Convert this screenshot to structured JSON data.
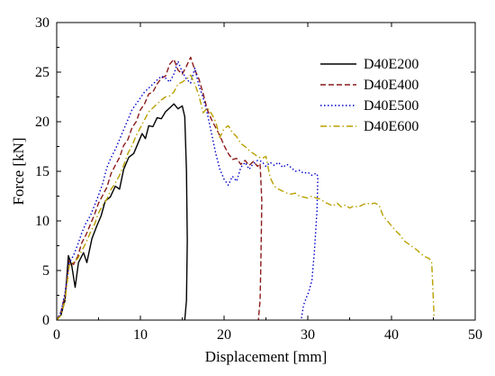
{
  "chart_data": {
    "type": "line",
    "xlabel": "Displacement [mm]",
    "ylabel": "Force [kN]",
    "xlim": [
      0,
      50
    ],
    "ylim": [
      0,
      30
    ],
    "xticks": [
      0,
      10,
      20,
      30,
      40,
      50
    ],
    "yticks": [
      0,
      5,
      10,
      15,
      20,
      25,
      30
    ],
    "grid": false,
    "legend_position": "top-right",
    "series": [
      {
        "name": "D40E200",
        "color": "#000000",
        "dash": "solid",
        "points": [
          [
            0,
            0
          ],
          [
            0.5,
            0.5
          ],
          [
            1,
            2
          ],
          [
            1.4,
            6.5
          ],
          [
            1.8,
            5.5
          ],
          [
            2.2,
            3.3
          ],
          [
            2.6,
            5.8
          ],
          [
            3.2,
            6.8
          ],
          [
            3.6,
            5.8
          ],
          [
            4.2,
            8.2
          ],
          [
            4.8,
            9.5
          ],
          [
            5.3,
            10.5
          ],
          [
            5.8,
            12
          ],
          [
            6.4,
            12.4
          ],
          [
            7,
            13.5
          ],
          [
            7.5,
            13.2
          ],
          [
            8,
            15.2
          ],
          [
            8.6,
            16.4
          ],
          [
            9.2,
            16.8
          ],
          [
            9.7,
            17.8
          ],
          [
            10.2,
            18.8
          ],
          [
            10.6,
            18.3
          ],
          [
            11,
            19.6
          ],
          [
            11.5,
            19.5
          ],
          [
            12,
            20.4
          ],
          [
            12.5,
            20.3
          ],
          [
            13,
            21
          ],
          [
            13.5,
            21.4
          ],
          [
            14,
            21.8
          ],
          [
            14.5,
            21.3
          ],
          [
            15,
            21.6
          ],
          [
            15.3,
            20.5
          ],
          [
            15.5,
            15
          ],
          [
            15.6,
            8
          ],
          [
            15.5,
            2
          ],
          [
            15.3,
            0
          ]
        ]
      },
      {
        "name": "D40E400",
        "color": "#8b1a1a",
        "dash": "dashed",
        "points": [
          [
            0,
            0
          ],
          [
            0.5,
            0.8
          ],
          [
            1,
            2.5
          ],
          [
            1.5,
            6
          ],
          [
            2,
            5.6
          ],
          [
            2.5,
            6.4
          ],
          [
            3,
            7.8
          ],
          [
            3.5,
            8.6
          ],
          [
            4,
            9.6
          ],
          [
            4.5,
            10.6
          ],
          [
            5,
            11.8
          ],
          [
            5.5,
            12.6
          ],
          [
            6,
            13.4
          ],
          [
            6.5,
            14.8
          ],
          [
            7,
            15.6
          ],
          [
            7.5,
            16.4
          ],
          [
            8,
            17.6
          ],
          [
            8.5,
            18.2
          ],
          [
            9,
            19.4
          ],
          [
            9.5,
            20
          ],
          [
            10,
            21.2
          ],
          [
            10.5,
            21.8
          ],
          [
            11,
            22.8
          ],
          [
            11.5,
            23
          ],
          [
            12,
            23.8
          ],
          [
            12.5,
            24.4
          ],
          [
            13,
            24.6
          ],
          [
            13.5,
            25.8
          ],
          [
            14,
            26.3
          ],
          [
            14.5,
            25.2
          ],
          [
            15,
            24.8
          ],
          [
            15.5,
            25.6
          ],
          [
            16,
            26.5
          ],
          [
            16.5,
            25.2
          ],
          [
            17,
            24.3
          ],
          [
            17.5,
            22.8
          ],
          [
            18,
            21.2
          ],
          [
            18.5,
            20.2
          ],
          [
            19,
            19.4
          ],
          [
            19.5,
            18.6
          ],
          [
            20,
            17.6
          ],
          [
            20.5,
            16.8
          ],
          [
            21,
            16.2
          ],
          [
            21.5,
            16.3
          ],
          [
            22,
            15.7
          ],
          [
            22.5,
            16.1
          ],
          [
            23,
            15.6
          ],
          [
            23.5,
            16
          ],
          [
            24,
            15.5
          ],
          [
            24.3,
            15.8
          ],
          [
            24.5,
            12
          ],
          [
            24.4,
            6
          ],
          [
            24.3,
            2
          ],
          [
            24.1,
            0
          ]
        ]
      },
      {
        "name": "D40E500",
        "color": "#0000cc",
        "dash": "dotted",
        "points": [
          [
            0,
            0
          ],
          [
            0.5,
            0.8
          ],
          [
            1,
            2.8
          ],
          [
            1.5,
            5.8
          ],
          [
            2,
            6.5
          ],
          [
            2.5,
            7.6
          ],
          [
            3,
            8.8
          ],
          [
            3.5,
            9.8
          ],
          [
            4,
            10.5
          ],
          [
            4.5,
            11.5
          ],
          [
            5,
            12.6
          ],
          [
            5.5,
            13.8
          ],
          [
            6,
            15.4
          ],
          [
            6.5,
            16.4
          ],
          [
            7,
            17.2
          ],
          [
            7.5,
            18.2
          ],
          [
            8,
            19.2
          ],
          [
            8.5,
            20.2
          ],
          [
            9,
            21.2
          ],
          [
            9.5,
            21.8
          ],
          [
            10,
            22.4
          ],
          [
            10.5,
            23
          ],
          [
            11,
            23.4
          ],
          [
            11.5,
            23.8
          ],
          [
            12,
            24.2
          ],
          [
            12.5,
            24.6
          ],
          [
            13,
            24.4
          ],
          [
            13.5,
            24
          ],
          [
            14,
            24.8
          ],
          [
            14.5,
            26.1
          ],
          [
            15,
            25
          ],
          [
            15.5,
            24.3
          ],
          [
            16,
            23.9
          ],
          [
            16.5,
            25.4
          ],
          [
            17,
            23.6
          ],
          [
            17.5,
            22.4
          ],
          [
            18,
            20.8
          ],
          [
            18.5,
            18.8
          ],
          [
            19,
            16.8
          ],
          [
            19.5,
            15.2
          ],
          [
            20,
            14.2
          ],
          [
            20.5,
            13.6
          ],
          [
            21,
            14.5
          ],
          [
            21.5,
            14
          ],
          [
            22,
            15.4
          ],
          [
            22.5,
            15.9
          ],
          [
            23,
            15.2
          ],
          [
            23.5,
            15.8
          ],
          [
            24,
            16.1
          ],
          [
            24.5,
            16
          ],
          [
            25,
            15.5
          ],
          [
            25.5,
            15.9
          ],
          [
            26,
            15.6
          ],
          [
            26.5,
            15.9
          ],
          [
            27,
            15.4
          ],
          [
            27.5,
            15.7
          ],
          [
            28,
            15.4
          ],
          [
            28.5,
            15
          ],
          [
            29,
            15.1
          ],
          [
            29.5,
            14.8
          ],
          [
            30,
            14.9
          ],
          [
            30.5,
            14.6
          ],
          [
            31,
            14.8
          ],
          [
            31.2,
            14.5
          ],
          [
            31.1,
            11
          ],
          [
            30.8,
            7
          ],
          [
            30.5,
            4
          ],
          [
            30.1,
            2.8
          ],
          [
            29.8,
            2.2
          ],
          [
            29.5,
            1.5
          ],
          [
            29.3,
            0.5
          ],
          [
            29.2,
            0
          ]
        ]
      },
      {
        "name": "D40E600",
        "color": "#b8a000",
        "dash": "dashdot",
        "points": [
          [
            0,
            0
          ],
          [
            0.5,
            0.5
          ],
          [
            1,
            2
          ],
          [
            1.5,
            5.5
          ],
          [
            2,
            5.8
          ],
          [
            2.5,
            6.2
          ],
          [
            3,
            7
          ],
          [
            3.5,
            7.8
          ],
          [
            4,
            8.8
          ],
          [
            4.5,
            9.6
          ],
          [
            5,
            10.8
          ],
          [
            5.5,
            11.6
          ],
          [
            6,
            12.2
          ],
          [
            6.5,
            13.2
          ],
          [
            7,
            13.8
          ],
          [
            7.5,
            14.6
          ],
          [
            8,
            15.6
          ],
          [
            8.5,
            16.8
          ],
          [
            9,
            17.6
          ],
          [
            9.5,
            18.6
          ],
          [
            10,
            19.4
          ],
          [
            10.5,
            20.2
          ],
          [
            11,
            21
          ],
          [
            11.5,
            21.4
          ],
          [
            12,
            21.8
          ],
          [
            12.5,
            22.2
          ],
          [
            13,
            22.5
          ],
          [
            13.5,
            22.6
          ],
          [
            14,
            23
          ],
          [
            14.5,
            23.8
          ],
          [
            15,
            24
          ],
          [
            15.5,
            24.3
          ],
          [
            16,
            24.7
          ],
          [
            16.5,
            23.8
          ],
          [
            17,
            22.6
          ],
          [
            17.5,
            20.9
          ],
          [
            18,
            21.4
          ],
          [
            18.5,
            20.8
          ],
          [
            19,
            20
          ],
          [
            19.5,
            18.4
          ],
          [
            20,
            19.3
          ],
          [
            20.5,
            19.6
          ],
          [
            21,
            18.9
          ],
          [
            21.5,
            18.5
          ],
          [
            22,
            17.8
          ],
          [
            22.5,
            17.5
          ],
          [
            23,
            17.1
          ],
          [
            23.5,
            16.8
          ],
          [
            24,
            16.5
          ],
          [
            24.5,
            16.3
          ],
          [
            25,
            16.5
          ],
          [
            25.5,
            14.4
          ],
          [
            26,
            13.5
          ],
          [
            26.5,
            13.2
          ],
          [
            27,
            13
          ],
          [
            27.5,
            12.8
          ],
          [
            28,
            12.7
          ],
          [
            28.5,
            12.8
          ],
          [
            29,
            12.5
          ],
          [
            29.5,
            12.4
          ],
          [
            30,
            12.3
          ],
          [
            30.5,
            12.5
          ],
          [
            31,
            12.3
          ],
          [
            31.5,
            12.2
          ],
          [
            32,
            11.9
          ],
          [
            32.5,
            11.7
          ],
          [
            33,
            11.5
          ],
          [
            33.5,
            11.8
          ],
          [
            34,
            11.4
          ],
          [
            34.5,
            11.6
          ],
          [
            35,
            11.3
          ],
          [
            35.5,
            11.5
          ],
          [
            36,
            11.4
          ],
          [
            36.5,
            11.6
          ],
          [
            37,
            11.8
          ],
          [
            37.5,
            11.7
          ],
          [
            38,
            11.8
          ],
          [
            38.5,
            11.6
          ],
          [
            39,
            10.5
          ],
          [
            39.5,
            10
          ],
          [
            40,
            9.5
          ],
          [
            40.5,
            9
          ],
          [
            41,
            8.6
          ],
          [
            41.5,
            8
          ],
          [
            42,
            7.7
          ],
          [
            42.5,
            7.4
          ],
          [
            43,
            7.1
          ],
          [
            43.5,
            6.7
          ],
          [
            44,
            6.4
          ],
          [
            44.5,
            6.2
          ],
          [
            44.8,
            5.9
          ],
          [
            44.9,
            4
          ],
          [
            45,
            2
          ],
          [
            45.1,
            0.2
          ]
        ]
      }
    ]
  }
}
